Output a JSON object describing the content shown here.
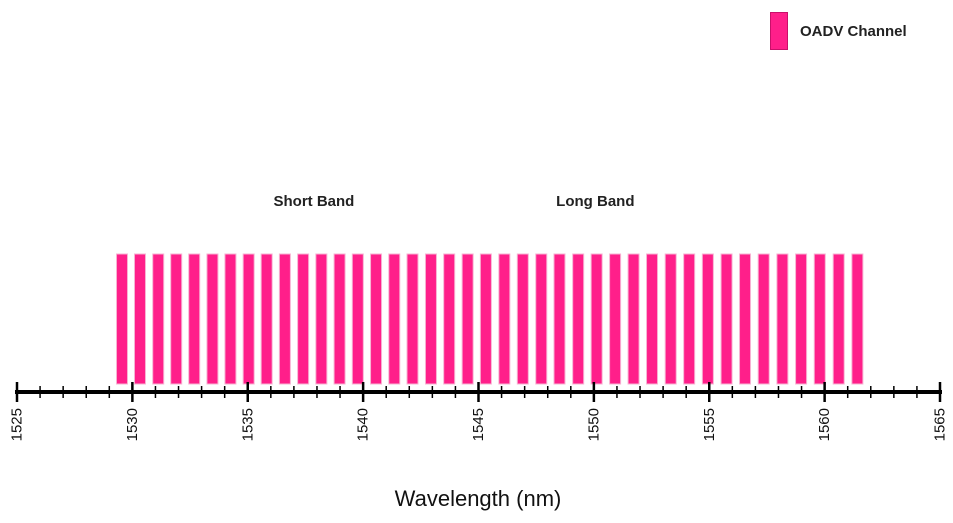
{
  "chart_data": {
    "type": "bar",
    "title": "",
    "xlabel": "Wavelength (nm)",
    "ylabel": "",
    "xlim": [
      1525,
      1565
    ],
    "x_major_ticks": [
      1525,
      1530,
      1535,
      1540,
      1545,
      1550,
      1555,
      1560,
      1565
    ],
    "x_minor_step": 1,
    "legend": {
      "placement": "top-right",
      "entries": [
        {
          "name": "OADV Channel",
          "color": "#ff1f8a"
        }
      ]
    },
    "grid": false,
    "annotations": [
      {
        "text": "Short Band",
        "x": 1538.5
      },
      {
        "text": "Long Band",
        "x": 1548.8
      }
    ],
    "series": [
      {
        "name": "OADV Channel",
        "color": "#ff1f8a",
        "channels": [
          1529.55,
          1530.33,
          1531.12,
          1531.9,
          1532.68,
          1533.47,
          1534.25,
          1535.04,
          1535.82,
          1536.61,
          1537.4,
          1538.19,
          1538.98,
          1539.77,
          1540.56,
          1541.35,
          1542.14,
          1542.94,
          1543.73,
          1544.53,
          1545.32,
          1546.12,
          1546.92,
          1547.72,
          1548.51,
          1549.32,
          1550.12,
          1550.92,
          1551.72,
          1552.52,
          1553.33,
          1554.13,
          1554.94,
          1555.75,
          1556.55,
          1557.36,
          1558.17,
          1558.98,
          1559.79,
          1560.61,
          1561.42
        ]
      }
    ]
  }
}
